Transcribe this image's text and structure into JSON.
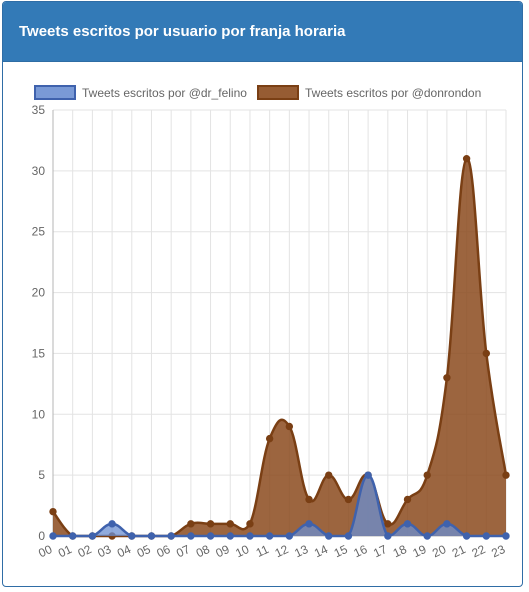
{
  "panel": {
    "title": "Tweets escritos por usuario por franja horaria"
  },
  "chart_data": {
    "type": "area",
    "x": [
      "00",
      "01",
      "02",
      "03",
      "04",
      "05",
      "06",
      "07",
      "08",
      "09",
      "10",
      "11",
      "12",
      "13",
      "14",
      "15",
      "16",
      "17",
      "18",
      "19",
      "20",
      "21",
      "22",
      "23"
    ],
    "ylim": [
      0,
      35
    ],
    "yticks": [
      0,
      5,
      10,
      15,
      20,
      25,
      30,
      35
    ],
    "grid": true,
    "legend": "top",
    "smooth": true,
    "series": [
      {
        "name": "Tweets escritos por @dr_felino",
        "values": [
          0,
          0,
          0,
          1,
          0,
          0,
          0,
          0,
          0,
          0,
          0,
          0,
          0,
          1,
          0,
          0,
          5,
          0,
          1,
          0,
          1,
          0,
          0,
          0
        ],
        "fill": "#6b8fd1",
        "stroke": "#3f62ad",
        "fill_opacity": 0.75
      },
      {
        "name": "Tweets escritos por @donrondon",
        "values": [
          2,
          0,
          0,
          0,
          0,
          0,
          0,
          1,
          1,
          1,
          1,
          8,
          9,
          3,
          5,
          3,
          5,
          1,
          3,
          5,
          13,
          31,
          15,
          5
        ],
        "fill": "#8b4a1d",
        "stroke": "#7a3f14",
        "fill_opacity": 0.85
      }
    ]
  }
}
